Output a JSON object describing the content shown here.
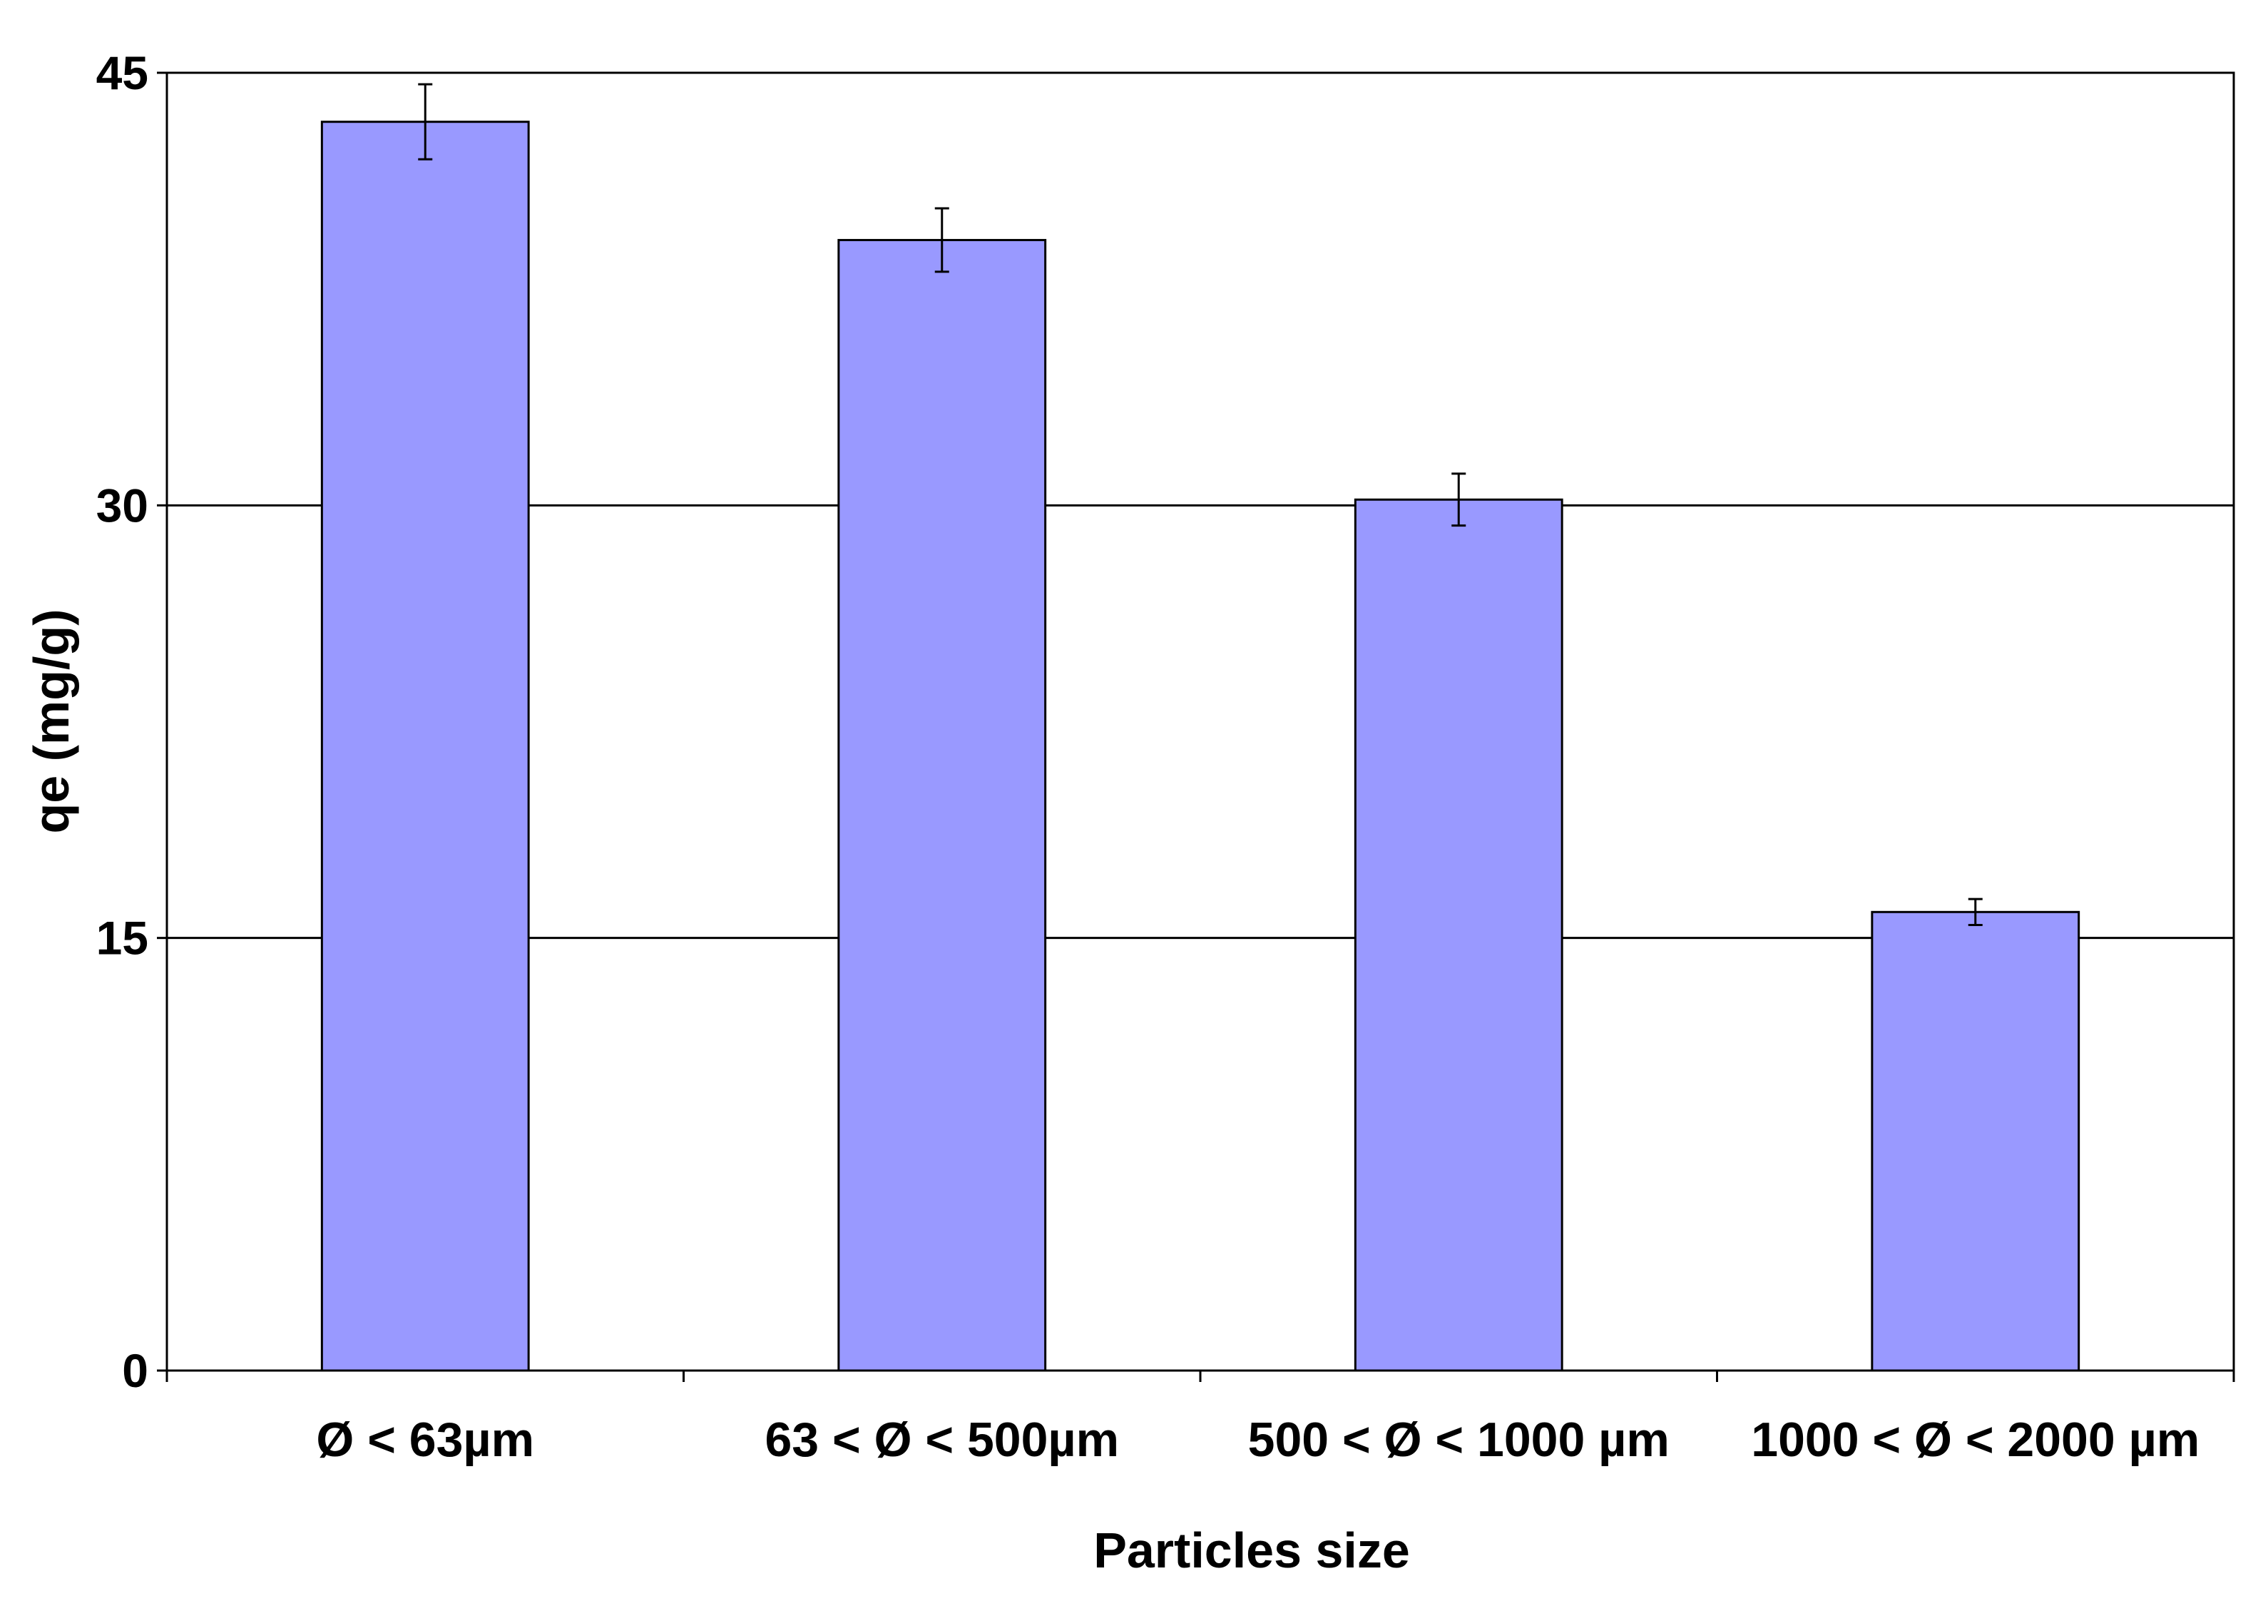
{
  "chart_data": {
    "type": "bar",
    "categories": [
      "Ø < 63µm",
      "63 < Ø < 500µm",
      "500 < Ø < 1000 µm",
      "1000 < Ø < 2000 µm"
    ],
    "values": [
      43.3,
      39.2,
      30.2,
      15.9
    ],
    "error": [
      1.3,
      1.1,
      0.9,
      0.45
    ],
    "xlabel": "Particles size",
    "ylabel": "qe (mg/g)",
    "ylim": [
      0,
      45
    ],
    "yticks": [
      0,
      15,
      30,
      45
    ],
    "grid": true,
    "legend": "none",
    "bar_color": "#9999ff",
    "bar_edge_color": "#000000"
  }
}
